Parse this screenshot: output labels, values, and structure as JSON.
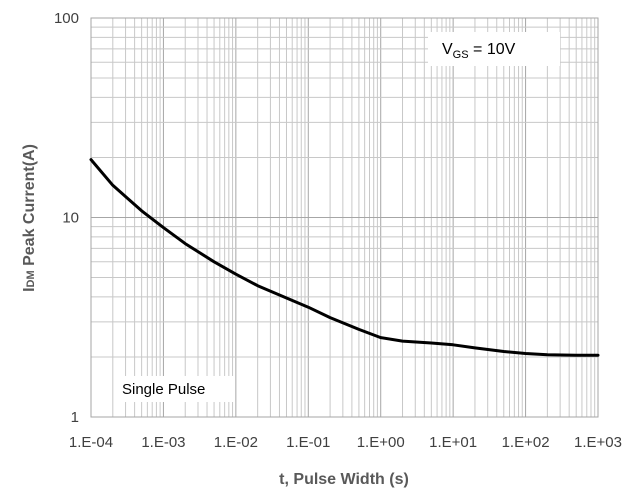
{
  "chart_data": {
    "type": "line",
    "xscale": "log",
    "yscale": "log",
    "xlim": [
      0.0001,
      1000
    ],
    "ylim": [
      1,
      100
    ],
    "xlabel": "t, Pulse Width (s)",
    "ylabel_prefix": "I",
    "ylabel_sub": "DM",
    "ylabel_rest": " Peak Current(A)",
    "x_ticks": [
      {
        "value": 0.0001,
        "label": "1.E-04"
      },
      {
        "value": 0.001,
        "label": "1.E-03"
      },
      {
        "value": 0.01,
        "label": "1.E-02"
      },
      {
        "value": 0.1,
        "label": "1.E-01"
      },
      {
        "value": 1,
        "label": "1.E+00"
      },
      {
        "value": 10,
        "label": "1.E+01"
      },
      {
        "value": 100,
        "label": "1.E+02"
      },
      {
        "value": 1000,
        "label": "1.E+03"
      }
    ],
    "y_ticks": [
      {
        "value": 1,
        "label": "1"
      },
      {
        "value": 10,
        "label": "10"
      },
      {
        "value": 100,
        "label": "100"
      }
    ],
    "grid": true,
    "series": [
      {
        "x": [
          0.0001,
          0.0002,
          0.0005,
          0.001,
          0.002,
          0.005,
          0.01,
          0.02,
          0.05,
          0.1,
          0.2,
          0.5,
          1,
          2,
          5,
          10,
          20,
          50,
          100,
          200,
          500,
          1000
        ],
        "y": [
          19.5,
          14.5,
          10.8,
          8.9,
          7.4,
          6.0,
          5.2,
          4.55,
          3.95,
          3.55,
          3.15,
          2.75,
          2.5,
          2.4,
          2.35,
          2.3,
          2.22,
          2.13,
          2.08,
          2.05,
          2.04,
          2.04
        ],
        "color": "#000000"
      }
    ],
    "annotations": {
      "vgs_main": "V",
      "vgs_sub": "GS",
      "vgs_rest": " = 10V",
      "pulse": "Single Pulse"
    }
  }
}
